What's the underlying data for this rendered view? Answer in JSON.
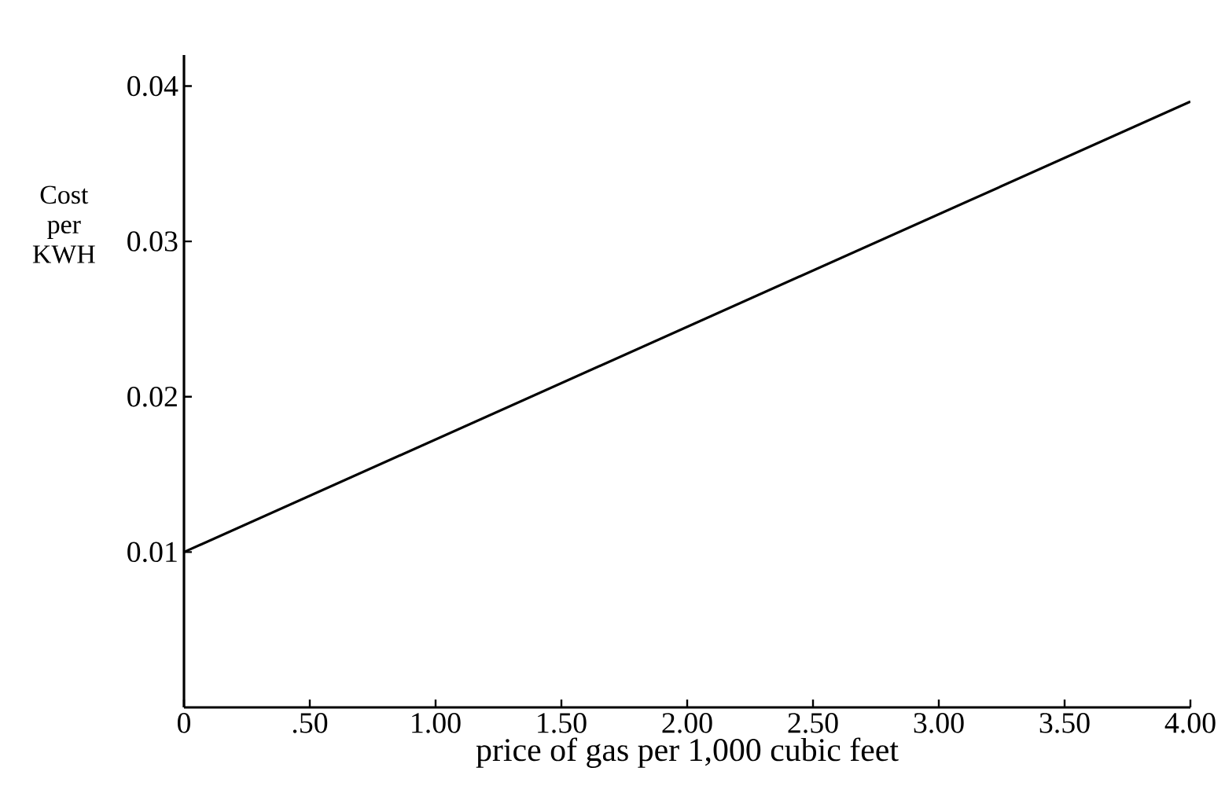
{
  "chart_data": {
    "type": "line",
    "xlabel": "price of gas per 1,000 cubic feet",
    "ylabel": "Cost per KWH",
    "x": [
      0,
      4.0
    ],
    "series": [
      {
        "color": "#000000",
        "values": [
          0.01,
          0.039
        ]
      }
    ],
    "xlim": [
      0,
      4.0
    ],
    "ylim": [
      0,
      0.042
    ],
    "xticks": [
      0,
      {
        "value": 0.5,
        "label": ".50"
      },
      {
        "value": 1.0,
        "label": "1.00"
      },
      {
        "value": 1.5,
        "label": "1.50"
      },
      {
        "value": 2.0,
        "label": "2.00"
      },
      {
        "value": 2.5,
        "label": "2.50"
      },
      {
        "value": 3.0,
        "label": "3.00"
      },
      {
        "value": 3.5,
        "label": "3.50"
      },
      {
        "value": 4.0,
        "label": "4.00"
      }
    ],
    "yticks": [
      0.01,
      0.02,
      0.03,
      0.04
    ],
    "grid": false,
    "marker": "none",
    "line_style": "solid"
  }
}
